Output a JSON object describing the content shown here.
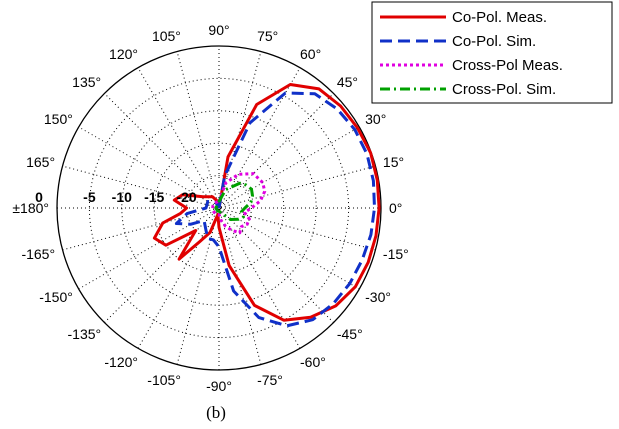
{
  "chart_data": {
    "type": "polar",
    "caption": "(b)",
    "r_ticks": [
      "0",
      "-5",
      "-10",
      "-15",
      "-20"
    ],
    "r_range_db": [
      -25,
      0
    ],
    "angle_ticks": [
      {
        "deg": 90,
        "label": "90°"
      },
      {
        "deg": 75,
        "label": "75°"
      },
      {
        "deg": 60,
        "label": "60°"
      },
      {
        "deg": 45,
        "label": "45°"
      },
      {
        "deg": 30,
        "label": "30°"
      },
      {
        "deg": 15,
        "label": "15°"
      },
      {
        "deg": 0,
        "label": "0°"
      },
      {
        "deg": -15,
        "label": "-15°"
      },
      {
        "deg": -30,
        "label": "-30°"
      },
      {
        "deg": -45,
        "label": "-45°"
      },
      {
        "deg": -60,
        "label": "-60°"
      },
      {
        "deg": -75,
        "label": "-75°"
      },
      {
        "deg": -90,
        "label": "-90°"
      },
      {
        "deg": -105,
        "label": "-105°"
      },
      {
        "deg": -120,
        "label": "-120°"
      },
      {
        "deg": -135,
        "label": "-135°"
      },
      {
        "deg": -150,
        "label": "-150°"
      },
      {
        "deg": -165,
        "label": "-165°"
      },
      {
        "deg": 180,
        "label": "±180°"
      },
      {
        "deg": 165,
        "label": "165°"
      },
      {
        "deg": 150,
        "label": "150°"
      },
      {
        "deg": 135,
        "label": "135°"
      },
      {
        "deg": 120,
        "label": "120°"
      },
      {
        "deg": 105,
        "label": "105°"
      }
    ],
    "grid": true,
    "legend_position": "top-right",
    "series": [
      {
        "name": "Co-Pol. Meas.",
        "color": "#e00000",
        "style": "solid",
        "points": [
          [
            90,
            -25
          ],
          [
            80,
            -17
          ],
          [
            70,
            -8
          ],
          [
            60,
            -3
          ],
          [
            50,
            -1
          ],
          [
            40,
            -0.5
          ],
          [
            30,
            -0.3
          ],
          [
            20,
            -0.1
          ],
          [
            10,
            -0.2
          ],
          [
            0,
            -0.3
          ],
          [
            -10,
            -0.4
          ],
          [
            -20,
            -0.5
          ],
          [
            -30,
            -0.7
          ],
          [
            -40,
            -1.5
          ],
          [
            -50,
            -3
          ],
          [
            -60,
            -5
          ],
          [
            -70,
            -9
          ],
          [
            -80,
            -16
          ],
          [
            -90,
            -22
          ],
          [
            -100,
            -24
          ],
          [
            -110,
            -21
          ],
          [
            -120,
            -19
          ],
          [
            -128,
            -15
          ],
          [
            -136,
            -20
          ],
          [
            -145,
            -15
          ],
          [
            -155,
            -14
          ],
          [
            -165,
            -16
          ],
          [
            -172,
            -19
          ],
          [
            180,
            -20
          ],
          [
            170,
            -18
          ],
          [
            160,
            -19
          ],
          [
            145,
            -22
          ],
          [
            120,
            -23
          ],
          [
            100,
            -24
          ],
          [
            90,
            -25
          ]
        ]
      },
      {
        "name": "Co-Pol. Sim.",
        "color": "#1030c8",
        "style": "dashed",
        "points": [
          [
            90,
            -25
          ],
          [
            80,
            -20
          ],
          [
            70,
            -11
          ],
          [
            60,
            -4.5
          ],
          [
            50,
            -2
          ],
          [
            40,
            -1.2
          ],
          [
            30,
            -0.8
          ],
          [
            20,
            -0.7
          ],
          [
            10,
            -0.8
          ],
          [
            0,
            -1
          ],
          [
            -10,
            -1.2
          ],
          [
            -20,
            -1.5
          ],
          [
            -30,
            -1.7
          ],
          [
            -40,
            -2
          ],
          [
            -50,
            -2.5
          ],
          [
            -60,
            -4
          ],
          [
            -70,
            -7
          ],
          [
            -80,
            -12
          ],
          [
            -90,
            -19
          ],
          [
            -100,
            -20
          ],
          [
            -110,
            -20
          ],
          [
            -120,
            -21
          ],
          [
            -140,
            -22
          ],
          [
            -150,
            -20
          ],
          [
            -160,
            -18
          ],
          [
            -170,
            -20
          ],
          [
            180,
            -23
          ],
          [
            150,
            -23
          ],
          [
            120,
            -24
          ],
          [
            90,
            -25
          ]
        ]
      },
      {
        "name": "Cross-Pol Meas.",
        "color": "#e000e0",
        "style": "dotted",
        "points": [
          [
            90,
            -24
          ],
          [
            75,
            -21
          ],
          [
            60,
            -19
          ],
          [
            45,
            -17.5
          ],
          [
            30,
            -17.2
          ],
          [
            20,
            -17.5
          ],
          [
            10,
            -18.5
          ],
          [
            0,
            -20
          ],
          [
            -10,
            -21
          ],
          [
            -20,
            -20
          ],
          [
            -30,
            -20
          ],
          [
            -40,
            -20.5
          ],
          [
            -50,
            -20
          ],
          [
            -60,
            -21
          ],
          [
            -70,
            -22
          ],
          [
            -80,
            -23
          ],
          [
            -90,
            -24
          ],
          [
            -110,
            -24
          ],
          [
            -140,
            -24
          ],
          [
            -170,
            -24
          ],
          [
            160,
            -24
          ],
          [
            130,
            -24
          ],
          [
            100,
            -24
          ],
          [
            90,
            -24
          ]
        ]
      },
      {
        "name": "Cross-Pol. Sim.",
        "color": "#00a000",
        "style": "dashdot",
        "points": [
          [
            90,
            -24
          ],
          [
            70,
            -22
          ],
          [
            50,
            -20
          ],
          [
            40,
            -19.5
          ],
          [
            30,
            -19.2
          ],
          [
            20,
            -19.5
          ],
          [
            10,
            -20
          ],
          [
            0,
            -21
          ],
          [
            -10,
            -21.5
          ],
          [
            -20,
            -21
          ],
          [
            -30,
            -21.5
          ],
          [
            -45,
            -22.5
          ],
          [
            -60,
            -24
          ],
          [
            -90,
            -24.5
          ],
          [
            -120,
            -24.5
          ],
          [
            180,
            -24.5
          ],
          [
            120,
            -24.5
          ],
          [
            90,
            -24
          ]
        ]
      }
    ]
  }
}
